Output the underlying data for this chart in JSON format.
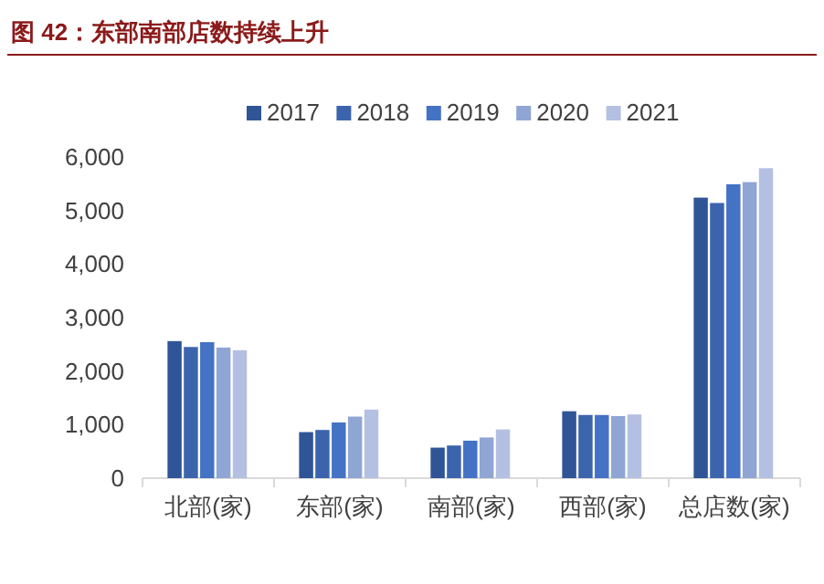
{
  "chart_data": {
    "type": "bar",
    "title": "图 42：东部南部店数持续上升",
    "categories": [
      "北部(家)",
      "东部(家)",
      "南部(家)",
      "西部(家)",
      "总店数(家)"
    ],
    "series": [
      {
        "name": "2017",
        "color": "#2f5597",
        "values": [
          2560,
          860,
          570,
          1250,
          5240
        ]
      },
      {
        "name": "2018",
        "color": "#3b64ad",
        "values": [
          2450,
          900,
          610,
          1180,
          5140
        ]
      },
      {
        "name": "2019",
        "color": "#4472c4",
        "values": [
          2540,
          1040,
          700,
          1180,
          5490
        ]
      },
      {
        "name": "2020",
        "color": "#8fa5d4",
        "values": [
          2440,
          1150,
          760,
          1160,
          5530
        ]
      },
      {
        "name": "2021",
        "color": "#b4c0e1",
        "values": [
          2390,
          1280,
          910,
          1190,
          5790
        ]
      }
    ],
    "ylim": [
      0,
      6000
    ],
    "yticks": [
      {
        "value": 0,
        "label": "0"
      },
      {
        "value": 1000,
        "label": "1,000"
      },
      {
        "value": 2000,
        "label": "2,000"
      },
      {
        "value": 3000,
        "label": "3,000"
      },
      {
        "value": 4000,
        "label": "4,000"
      },
      {
        "value": 5000,
        "label": "5,000"
      },
      {
        "value": 6000,
        "label": "6,000"
      }
    ],
    "legend": "top",
    "grid": false
  }
}
